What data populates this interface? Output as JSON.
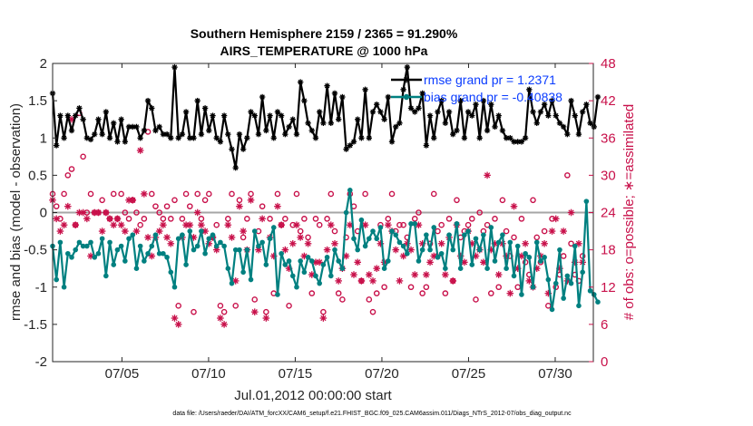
{
  "chart_data": {
    "type": "line",
    "title_line1": "Southern Hemisphere 2159 / 2365 = 91.290%",
    "title_line2": "AIRS_TEMPERATURE @ 1000 hPa",
    "xlabel": "Jul.01,2012 00:00:00 start",
    "ylabel_left": "rmse and bias (model - observation)",
    "ylabel_right": "# of obs: o=possible; ∗=assimilated",
    "footer": "data file: /Users/raeder/DAI/ATM_forcXX/CAM6_setup/f.e21.FHIST_BGC.f09_025.CAM6assim.011/Diags_NTrS_2012-07/obs_diag_output.nc",
    "xlim": [
      1,
      32.2
    ],
    "ylim_left": [
      -2,
      2
    ],
    "ylim_right": [
      0,
      48
    ],
    "x_ticks": [
      5,
      10,
      15,
      20,
      25,
      30
    ],
    "x_tick_labels": [
      "07/05",
      "07/10",
      "07/15",
      "07/20",
      "07/25",
      "07/30"
    ],
    "y_ticks_left": [
      -2,
      -1.5,
      -1,
      -0.5,
      0,
      0.5,
      1,
      1.5,
      2
    ],
    "y_tick_labels_left": [
      "-2",
      "-1.5",
      "-1",
      "-0.5",
      "0",
      "0.5",
      "1",
      "1.5",
      "2"
    ],
    "y_ticks_right": [
      0,
      6,
      12,
      18,
      24,
      30,
      36,
      42,
      48
    ],
    "y_tick_labels_right": [
      "0",
      "6",
      "12",
      "18",
      "24",
      "30",
      "36",
      "42",
      "48"
    ],
    "legend": {
      "rmse_label": "rmse grand pr = 1.2371",
      "bias_label": "bias grand pr = -0.40838"
    },
    "colors": {
      "rmse": "#000000",
      "bias": "#008080",
      "obs": "#c8104a",
      "zero_line": "#a6a6a6",
      "legend_text": "#0a3cff"
    },
    "series": [
      {
        "name": "rmse",
        "values": [
          1.6,
          0.9,
          1.3,
          1.0,
          1.3,
          1.1,
          1.3,
          1.4,
          1.25,
          1.0,
          0.98,
          1.05,
          1.25,
          1.05,
          1.35,
          1.0,
          1.2,
          0.95,
          1.25,
          0.95,
          1.15,
          1.15,
          1.15,
          1.0,
          1.1,
          1.5,
          1.4,
          1.1,
          1.15,
          1.05,
          1.05,
          1.0,
          1.95,
          1.0,
          1.05,
          1.35,
          1.0,
          1.0,
          1.5,
          1.05,
          1.4,
          1.1,
          1.3,
          1.0,
          0.95,
          1.3,
          1.05,
          0.85,
          0.6,
          1.05,
          0.85,
          1.0,
          1.35,
          1.3,
          1.05,
          1.55,
          1.1,
          1.3,
          1.0,
          1.35,
          1.3,
          1.05,
          1.15,
          1.25,
          1.05,
          1.75,
          1.5,
          1.2,
          1.1,
          1.0,
          1.35,
          1.2,
          1.7,
          1.2,
          1.6,
          1.25,
          1.55,
          0.85,
          0.9,
          0.95,
          1.25,
          1.0,
          1.65,
          1.0,
          1.35,
          1.45,
          1.35,
          1.25,
          1.55,
          0.95,
          1.15,
          1.2,
          1.65,
          1.95,
          1.4,
          1.35,
          1.4,
          1.6,
          0.9,
          1.3,
          1.0,
          1.35,
          1.5,
          1.2,
          1.35,
          1.05,
          1.1,
          1.5,
          1.0,
          1.35,
          1.3,
          1.45,
          1.0,
          1.5,
          1.1,
          1.45,
          1.15,
          1.3,
          1.1,
          1.0,
          1.0,
          0.95,
          0.95,
          0.95,
          1.0,
          1.65,
          1.35,
          1.2,
          1.35,
          1.45,
          1.3,
          1.5,
          1.3,
          1.2,
          1.15,
          1.05,
          1.5,
          1.3,
          1.05,
          1.35,
          1.45,
          1.2,
          1.15,
          1.55
        ]
      },
      {
        "name": "bias",
        "values": [
          -0.45,
          -0.9,
          -0.4,
          -1.0,
          -0.55,
          -0.6,
          -0.5,
          -0.4,
          -0.45,
          -0.45,
          -0.4,
          -0.6,
          -0.55,
          -0.35,
          -0.85,
          -0.4,
          -0.7,
          -0.5,
          -0.45,
          -0.65,
          -0.35,
          -0.3,
          -0.75,
          -0.45,
          -0.65,
          -0.55,
          -0.45,
          -0.3,
          -0.55,
          -0.55,
          -0.6,
          -0.8,
          -1.0,
          -0.35,
          -0.3,
          -0.7,
          -0.25,
          -0.5,
          -0.45,
          -0.25,
          -0.55,
          -0.35,
          -0.3,
          -0.45,
          -0.4,
          -0.45,
          -0.75,
          -0.95,
          -0.5,
          -0.5,
          -0.8,
          -0.5,
          -0.9,
          -0.25,
          -0.45,
          -0.4,
          -0.7,
          -0.35,
          -0.2,
          -1.1,
          -0.55,
          -0.7,
          -0.65,
          -0.85,
          -1.0,
          -0.65,
          -0.8,
          -0.6,
          -0.65,
          -0.85,
          -0.95,
          -0.7,
          -0.6,
          -0.85,
          -0.5,
          -0.65,
          -0.75,
          0.0,
          0.3,
          -0.35,
          -0.5,
          -0.1,
          -0.45,
          -0.35,
          -0.25,
          -0.35,
          -0.2,
          -0.75,
          -0.65,
          -0.25,
          -0.3,
          -0.4,
          -0.45,
          -0.55,
          -0.15,
          -0.15,
          -0.65,
          -0.5,
          -0.3,
          -0.5,
          -0.2,
          -0.6,
          -0.55,
          -0.75,
          -0.3,
          -0.5,
          -0.15,
          -0.75,
          -0.3,
          -0.25,
          -0.7,
          -0.35,
          -0.5,
          -0.3,
          -0.75,
          -0.2,
          -0.65,
          -0.4,
          -0.3,
          -0.75,
          -0.4,
          -0.85,
          -0.45,
          -1.1,
          -0.55,
          -0.6,
          -1.0,
          -0.4,
          -0.65,
          -0.6,
          -0.9,
          -1.3,
          -0.95,
          -0.5,
          -1.15,
          -0.85,
          -0.95,
          -0.45,
          -1.25,
          -0.8,
          0.15,
          -1.05,
          -1.1,
          -1.2
        ]
      },
      {
        "name": "obs_possible",
        "values": [
          27,
          25,
          23,
          27,
          30,
          31,
          22,
          40,
          33,
          24,
          27,
          24,
          24,
          26,
          24,
          23,
          27,
          23,
          27,
          24,
          23,
          26,
          24,
          22,
          23,
          37,
          27,
          25,
          24,
          23,
          25,
          23,
          26,
          9,
          23,
          27,
          25,
          8,
          27,
          23,
          26,
          27,
          20,
          22,
          9,
          8,
          23,
          27,
          9,
          26,
          20,
          23,
          27,
          10,
          21,
          25,
          8,
          23,
          11,
          27,
          22,
          23,
          9,
          22,
          27,
          21,
          23,
          20,
          11,
          23,
          22,
          8,
          23,
          27,
          21,
          11,
          10,
          20,
          27,
          25,
          21,
          13,
          27,
          10,
          8,
          11,
          22,
          12,
          23,
          27,
          21,
          22,
          22,
          20,
          12,
          23,
          24,
          11,
          12,
          19,
          27,
          21,
          22,
          11,
          23,
          13,
          26,
          20,
          21,
          22,
          23,
          10,
          24,
          21,
          22,
          11,
          23,
          12,
          26,
          21,
          17,
          20,
          12,
          23,
          16,
          14,
          26,
          20,
          16,
          21,
          9,
          23,
          12,
          14,
          17,
          30,
          19,
          14,
          13,
          17
        ]
      },
      {
        "name": "obs_assimilated",
        "values": [
          26,
          23,
          21,
          22,
          25,
          39,
          22,
          24,
          24,
          23,
          17,
          24,
          24,
          21,
          24,
          23,
          22,
          23,
          22,
          21,
          26,
          26,
          21,
          34,
          27,
          20,
          17,
          20,
          21,
          22,
          20,
          19,
          7,
          6,
          20,
          22,
          22,
          20,
          24,
          22,
          21,
          19,
          20,
          18,
          7,
          6,
          22,
          20,
          13,
          25,
          21,
          18,
          26,
          8,
          18,
          23,
          7,
          20,
          17,
          25,
          22,
          18,
          15,
          19,
          22,
          20,
          17,
          19,
          14,
          16,
          16,
          7,
          18,
          22,
          19,
          13,
          15,
          17,
          22,
          14,
          16,
          13,
          22,
          14,
          13,
          15,
          19,
          16,
          22,
          21,
          18,
          13,
          17,
          19,
          18,
          14,
          22,
          19,
          14,
          16,
          17,
          17,
          19,
          14,
          20,
          13,
          22,
          17,
          16,
          21,
          19,
          17,
          18,
          16,
          30,
          18,
          19,
          14,
          19,
          17,
          11,
          25,
          15,
          17,
          19,
          13,
          12,
          15,
          17,
          19,
          11,
          21,
          23,
          15,
          21,
          13,
          24,
          16,
          19,
          16
        ]
      }
    ]
  }
}
